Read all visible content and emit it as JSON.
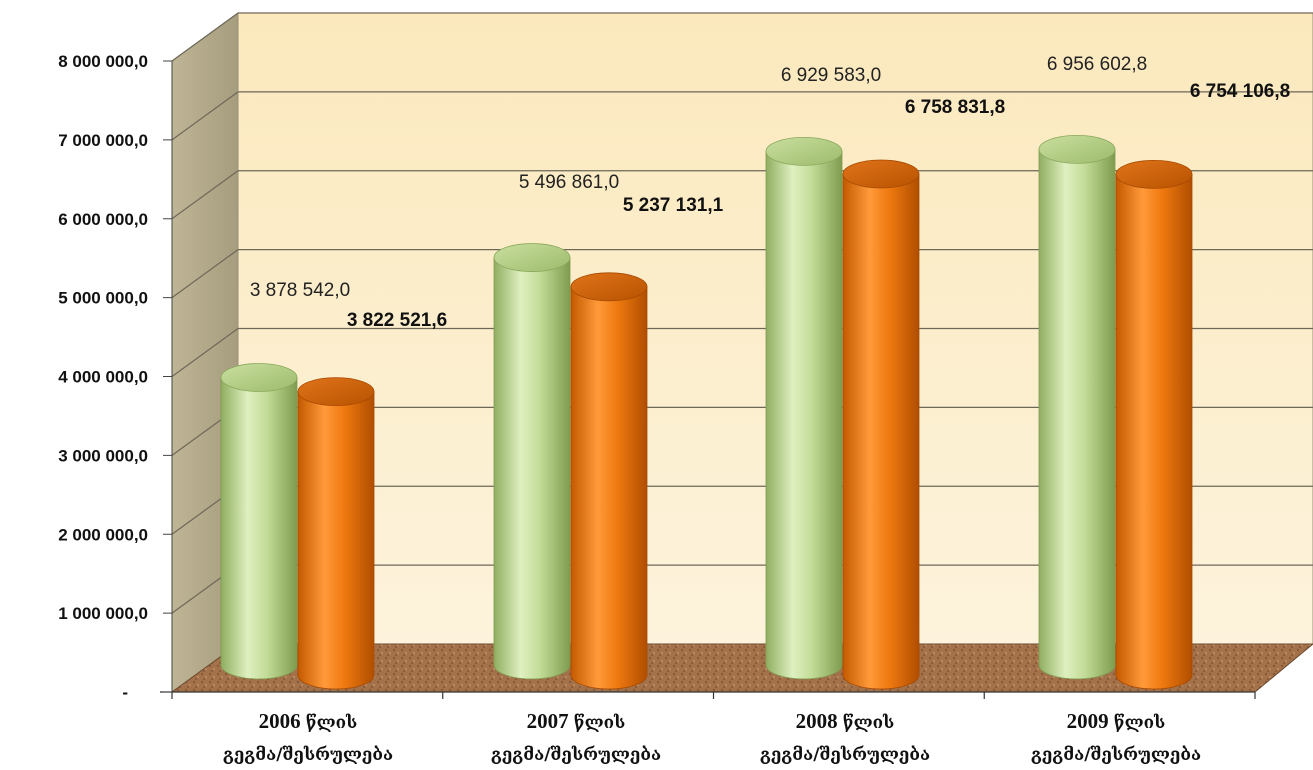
{
  "chart_data": {
    "type": "bar",
    "style": "3d-cylinder",
    "categories": [
      {
        "year": "2006",
        "word": "წლის",
        "label": "გეგმა/შესრულება"
      },
      {
        "year": "2007",
        "word": "წლის",
        "label": "გეგმა/შესრულება"
      },
      {
        "year": "2008",
        "word": "წლის",
        "label": "გეგმა/შესრულება"
      },
      {
        "year": "2009",
        "word": "წლის",
        "label": "გეგმა/შესრულება"
      }
    ],
    "series": [
      {
        "key": "plan",
        "values": [
          3878542.0,
          5496861.0,
          6929583.0,
          6956602.8
        ],
        "value_labels": [
          "3 878 542,0",
          "5 496 861,0",
          "6 929 583,0",
          "6 956 602,8"
        ],
        "color": "#b9d38e"
      },
      {
        "key": "execution",
        "values": [
          3822521.6,
          5237131.1,
          6758831.8,
          6754106.8
        ],
        "value_labels": [
          "3 822 521,6",
          "5 237 131,1",
          "6 758 831,8",
          "6 754 106,8"
        ],
        "color": "#f07a10"
      }
    ],
    "y_ticks": [
      {
        "value": 0,
        "label": "-"
      },
      {
        "value": 1000000,
        "label": "1 000 000,0"
      },
      {
        "value": 2000000,
        "label": "2 000 000,0"
      },
      {
        "value": 3000000,
        "label": "3 000 000,0"
      },
      {
        "value": 4000000,
        "label": "4 000 000,0"
      },
      {
        "value": 5000000,
        "label": "5 000 000,0"
      },
      {
        "value": 6000000,
        "label": "6 000 000,0"
      },
      {
        "value": 7000000,
        "label": "7 000 000,0"
      },
      {
        "value": 8000000,
        "label": "8 000 000,0"
      }
    ],
    "ylim": [
      0,
      8000000
    ],
    "grid": true,
    "legend": "none",
    "wall_color": "#fbedc8",
    "floor_color": "#a0704a"
  }
}
